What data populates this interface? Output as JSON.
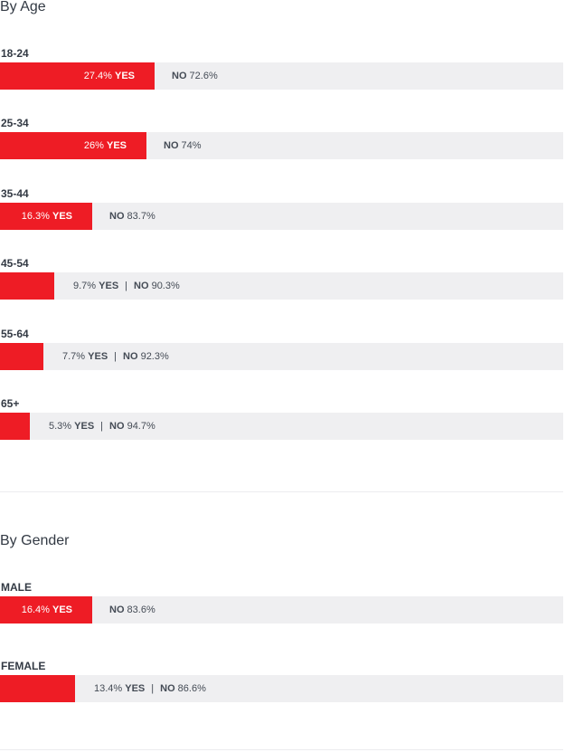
{
  "colors": {
    "yes": "#ee1c25",
    "no": "#efeff1",
    "text": "#333a44"
  },
  "chart_data": [
    {
      "type": "bar",
      "orientation": "horizontal",
      "stacked": true,
      "title": "By Age",
      "categories": [
        "18-24",
        "25-34",
        "35-44",
        "45-54",
        "55-64",
        "65+"
      ],
      "series": [
        {
          "name": "YES",
          "values": [
            27.4,
            26,
            16.3,
            9.7,
            7.7,
            5.3
          ],
          "labels": [
            "27.4%",
            "26%",
            "16.3%",
            "9.7%",
            "7.7%",
            "5.3%"
          ]
        },
        {
          "name": "NO",
          "values": [
            72.6,
            74,
            83.7,
            90.3,
            92.3,
            94.7
          ],
          "labels": [
            "72.6%",
            "74%",
            "83.7%",
            "90.3%",
            "92.3%",
            "94.7%"
          ]
        }
      ],
      "xlim": [
        0,
        100
      ]
    },
    {
      "type": "bar",
      "orientation": "horizontal",
      "stacked": true,
      "title": "By Gender",
      "categories": [
        "MALE",
        "FEMALE"
      ],
      "series": [
        {
          "name": "YES",
          "values": [
            16.4,
            13.4
          ],
          "labels": [
            "16.4%",
            "13.4%"
          ]
        },
        {
          "name": "NO",
          "values": [
            83.6,
            86.6
          ],
          "labels": [
            "83.6%",
            "86.6%"
          ]
        }
      ],
      "xlim": [
        0,
        100
      ]
    }
  ]
}
